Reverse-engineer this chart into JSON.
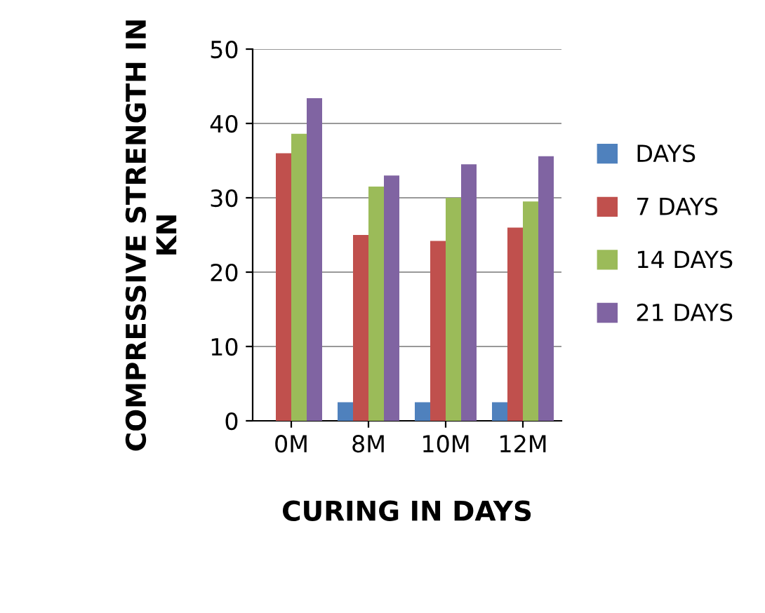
{
  "chart_data": {
    "type": "bar",
    "xlabel": "CURING IN DAYS",
    "ylabel": "COMPRESSIVE STRENGTH IN KN",
    "categories": [
      "0M",
      "8M",
      "10M",
      "12M"
    ],
    "series": [
      {
        "name": "DAYS",
        "color": "#4f81bd",
        "values": [
          0,
          2.5,
          2.5,
          2.5
        ]
      },
      {
        "name": "7 DAYS",
        "color": "#c0504d",
        "values": [
          36,
          25,
          24.2,
          26
        ]
      },
      {
        "name": "14 DAYS",
        "color": "#9bbb59",
        "values": [
          38.6,
          31.5,
          30,
          29.5
        ]
      },
      {
        "name": "21 DAYS",
        "color": "#8064a2",
        "values": [
          43.4,
          33,
          34.5,
          35.6
        ]
      }
    ],
    "ylim": [
      0,
      50
    ],
    "yticks": [
      0,
      10,
      20,
      30,
      40,
      50
    ],
    "grid": "y",
    "legend": "right"
  }
}
